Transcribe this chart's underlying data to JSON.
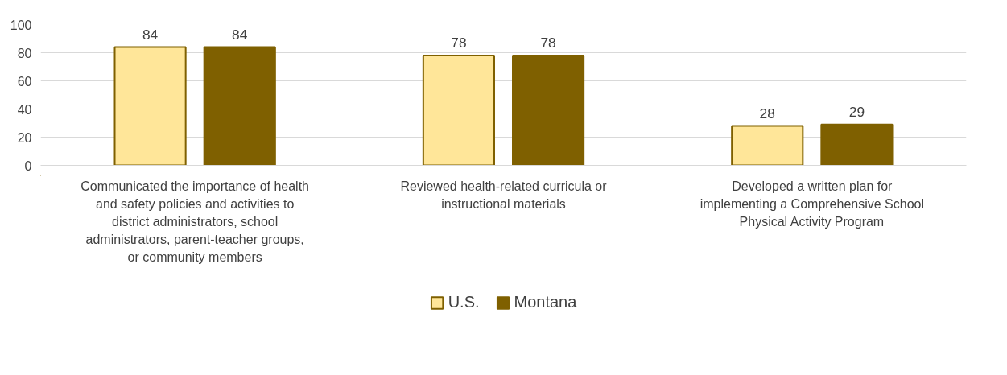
{
  "chart_data": {
    "type": "bar",
    "categories": [
      "Communicated the importance of health and safety policies and activities to district administrators, school administrators, parent-teacher groups, or community members",
      "Reviewed health-related curricula or instructional materials",
      "Developed a written plan for implementing a Comprehensive School Physical Activity Program"
    ],
    "series": [
      {
        "name": "U.S.",
        "color": "#ffe699",
        "values": [
          84,
          78,
          28
        ]
      },
      {
        "name": "Montana",
        "color": "#7f6000",
        "values": [
          84,
          78,
          29
        ]
      }
    ],
    "ylim": [
      0,
      100
    ],
    "yticks": [
      0,
      20,
      40,
      60,
      80,
      100
    ],
    "grid": "y",
    "legend": "bottom",
    "data_labels": true
  }
}
